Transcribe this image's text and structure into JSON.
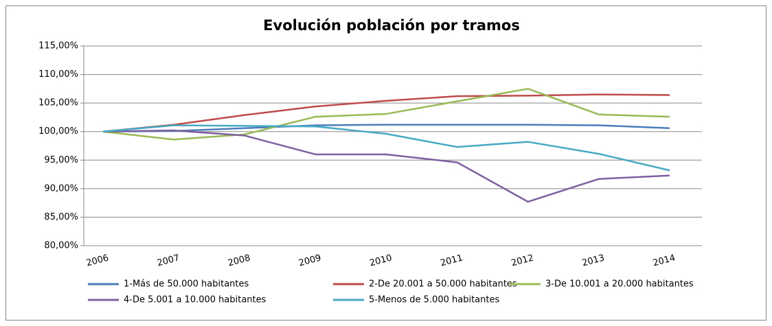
{
  "chart_data": {
    "type": "line",
    "title": "Evolución población por tramos",
    "categories": [
      "2006",
      "2007",
      "2008",
      "2009",
      "2010",
      "2011",
      "2012",
      "2013",
      "2014"
    ],
    "series": [
      {
        "name": "1-Más de 50.000 habitantes",
        "color": "#4a7ebb",
        "values": [
          100,
          100.1,
          100.6,
          101.1,
          101.2,
          101.2,
          101.2,
          101.1,
          100.6
        ]
      },
      {
        "name": "2-De 20.001 a 50.000 habitantes",
        "color": "#be4b48",
        "values": [
          100,
          101.2,
          102.9,
          104.4,
          105.4,
          106.2,
          106.3,
          106.5,
          106.4
        ]
      },
      {
        "name": "3-De 10.001 a 20.000 habitantes",
        "color": "#98b954",
        "values": [
          100,
          98.6,
          99.5,
          102.6,
          103.1,
          105.3,
          107.5,
          103.0,
          102.6
        ]
      },
      {
        "name": "4-De 5.001 a 10.000 habitantes",
        "color": "#7d60a0",
        "values": [
          100,
          100.2,
          99.3,
          96.0,
          96.0,
          94.6,
          87.7,
          91.7,
          92.3
        ]
      },
      {
        "name": "5-Menos de 5.000 habitantes",
        "color": "#46aac5",
        "values": [
          100,
          101.1,
          101.0,
          100.9,
          99.6,
          97.3,
          98.2,
          96.1,
          93.2
        ]
      }
    ],
    "ylim": [
      80,
      115
    ],
    "yticks": [
      {
        "value": 80,
        "label": "80,00%"
      },
      {
        "value": 85,
        "label": "85,00%"
      },
      {
        "value": 90,
        "label": "90,00%"
      },
      {
        "value": 95,
        "label": "95,00%"
      },
      {
        "value": 100,
        "label": "100,00%"
      },
      {
        "value": 105,
        "label": "105,00%"
      },
      {
        "value": 110,
        "label": "110,00%"
      },
      {
        "value": 115,
        "label": "115,00%"
      }
    ],
    "grid": true
  }
}
